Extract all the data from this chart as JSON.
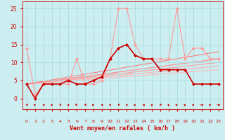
{
  "xlabel": "Vent moyen/en rafales ( km/h )",
  "bg_color": "#cceef0",
  "grid_color": "#aadddd",
  "ylim": [
    -3,
    27
  ],
  "xlim": [
    -0.5,
    23.5
  ],
  "yticks": [
    0,
    5,
    10,
    15,
    20,
    25
  ],
  "xticks": [
    0,
    1,
    2,
    3,
    4,
    5,
    6,
    7,
    8,
    9,
    10,
    11,
    12,
    13,
    14,
    15,
    16,
    17,
    18,
    19,
    20,
    21,
    22,
    23
  ],
  "series_light": {
    "x": [
      0,
      1,
      2,
      3,
      4,
      5,
      6,
      7,
      8,
      9,
      10,
      11,
      12,
      13,
      14,
      15,
      16,
      17,
      18,
      19,
      20,
      21,
      22,
      23
    ],
    "y": [
      14,
      1,
      4,
      4,
      4,
      4,
      11,
      4,
      4,
      5,
      11,
      25,
      25,
      15,
      11,
      11,
      11,
      11,
      25,
      11,
      14,
      14,
      11,
      11
    ],
    "color": "#ff9999",
    "lw": 0.8,
    "ms": 2.5
  },
  "series_dark": {
    "x": [
      0,
      1,
      2,
      3,
      4,
      5,
      6,
      7,
      8,
      9,
      10,
      11,
      12,
      13,
      14,
      15,
      16,
      17,
      18,
      19,
      20,
      21,
      22,
      23
    ],
    "y": [
      4,
      0,
      4,
      4,
      4,
      5,
      4,
      4,
      5,
      6,
      11,
      14,
      15,
      12,
      11,
      11,
      8,
      8,
      8,
      8,
      4,
      4,
      4,
      4
    ],
    "color": "#cc0000",
    "lw": 1.2,
    "ms": 2.5
  },
  "trend_lines": [
    {
      "x": [
        0,
        23
      ],
      "y": [
        4,
        8
      ],
      "color": "#ffbbbb",
      "lw": 0.8
    },
    {
      "x": [
        0,
        23
      ],
      "y": [
        4,
        9
      ],
      "color": "#ffaaaa",
      "lw": 0.8
    },
    {
      "x": [
        0,
        23
      ],
      "y": [
        4,
        10
      ],
      "color": "#ff9999",
      "lw": 0.8
    },
    {
      "x": [
        0,
        23
      ],
      "y": [
        4,
        11
      ],
      "color": "#ff8888",
      "lw": 0.8
    },
    {
      "x": [
        0,
        23
      ],
      "y": [
        4,
        13
      ],
      "color": "#ff7777",
      "lw": 0.8
    }
  ],
  "wind_arrows": {
    "x": [
      0,
      1,
      2,
      3,
      4,
      5,
      6,
      7,
      8,
      9,
      10,
      11,
      12,
      13,
      14,
      15,
      16,
      17,
      18,
      19,
      20,
      21,
      22,
      23
    ],
    "angles": [
      225,
      45,
      315,
      180,
      225,
      180,
      135,
      225,
      45,
      315,
      180,
      225,
      180,
      45,
      315,
      180,
      225,
      180,
      45,
      45,
      45,
      90,
      45,
      90
    ]
  }
}
